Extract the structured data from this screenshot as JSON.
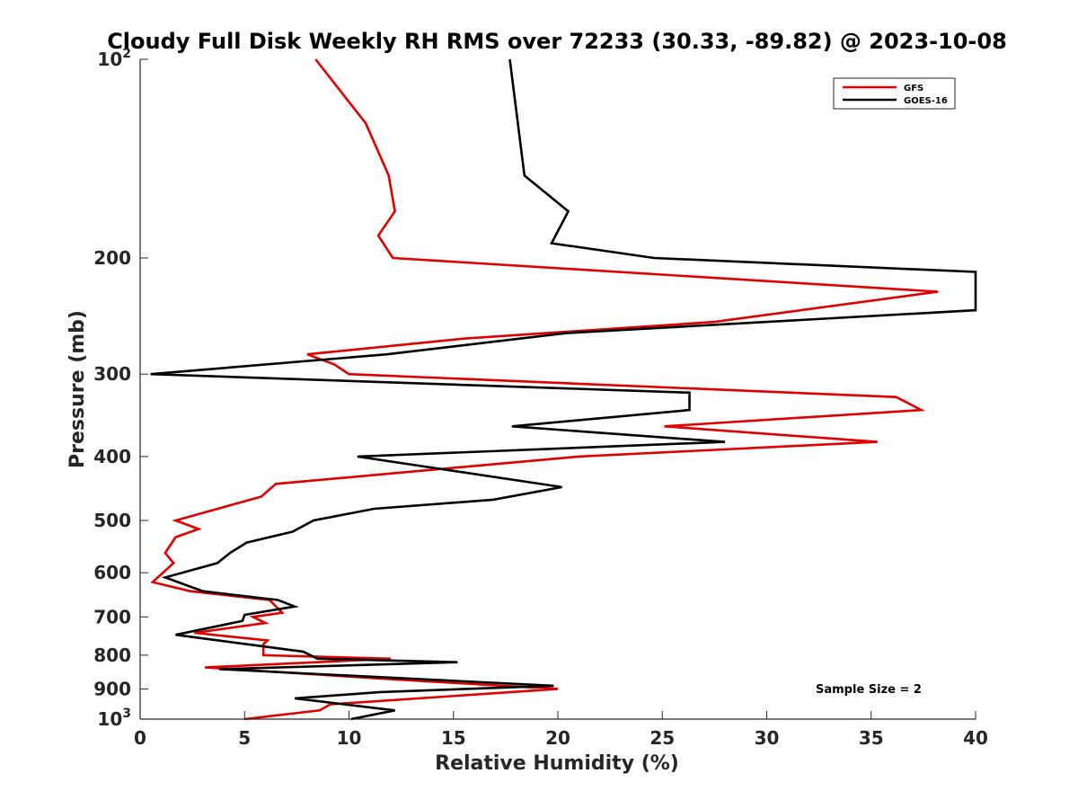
{
  "chart_data": {
    "type": "line",
    "title": "Cloudy Full Disk Weekly RH RMS over 72233 (30.33, -89.82) @ 2023-10-08",
    "xlabel": "Relative Humidity (%)",
    "ylabel": "Pressure (mb)",
    "xlim": [
      0,
      40
    ],
    "ylim": [
      1000,
      100
    ],
    "yscale": "log",
    "x_ticks": [
      "0",
      "5",
      "10",
      "15",
      "20",
      "25",
      "30",
      "35",
      "40"
    ],
    "y_ticks": [
      {
        "value": 100,
        "base": "10",
        "exp": "2"
      },
      {
        "value": 200,
        "label": "200"
      },
      {
        "value": 300,
        "label": "300"
      },
      {
        "value": 400,
        "label": "400"
      },
      {
        "value": 500,
        "label": "500"
      },
      {
        "value": 600,
        "label": "600"
      },
      {
        "value": 700,
        "label": "700"
      },
      {
        "value": 800,
        "label": "800"
      },
      {
        "value": 900,
        "label": "900"
      },
      {
        "value": 1000,
        "base": "10",
        "exp": "3"
      }
    ],
    "legend_position": "top-right",
    "annotation": "Sample Size = 2",
    "series": [
      {
        "name": "GFS",
        "color": "#e00000",
        "points": [
          [
            8.4,
            100
          ],
          [
            10.8,
            125
          ],
          [
            11.9,
            150
          ],
          [
            12.2,
            170
          ],
          [
            11.4,
            185
          ],
          [
            12.1,
            200
          ],
          [
            38.2,
            225
          ],
          [
            27.5,
            250
          ],
          [
            15.5,
            265
          ],
          [
            8.0,
            280
          ],
          [
            9.3,
            290
          ],
          [
            10.0,
            300
          ],
          [
            36.2,
            325
          ],
          [
            37.4,
            340
          ],
          [
            25.1,
            360
          ],
          [
            35.3,
            380
          ],
          [
            21.0,
            400
          ],
          [
            6.5,
            440
          ],
          [
            5.8,
            460
          ],
          [
            1.7,
            500
          ],
          [
            2.8,
            515
          ],
          [
            1.7,
            530
          ],
          [
            1.2,
            560
          ],
          [
            1.6,
            580
          ],
          [
            0.6,
            620
          ],
          [
            2.4,
            640
          ],
          [
            6.2,
            660
          ],
          [
            6.8,
            690
          ],
          [
            5.4,
            700
          ],
          [
            6.0,
            715
          ],
          [
            2.6,
            740
          ],
          [
            6.1,
            760
          ],
          [
            5.9,
            770
          ],
          [
            5.9,
            800
          ],
          [
            12.0,
            810
          ],
          [
            3.1,
            835
          ],
          [
            12.0,
            870
          ],
          [
            20.0,
            900
          ],
          [
            9.1,
            950
          ],
          [
            8.6,
            970
          ],
          [
            5.0,
            1000
          ]
        ]
      },
      {
        "name": "GOES-16",
        "color": "#000000",
        "points": [
          [
            17.7,
            100
          ],
          [
            18.4,
            150
          ],
          [
            20.5,
            170
          ],
          [
            19.7,
            190
          ],
          [
            24.6,
            200
          ],
          [
            40.0,
            210
          ],
          [
            40.0,
            240
          ],
          [
            20.4,
            260
          ],
          [
            11.8,
            280
          ],
          [
            0.5,
            300
          ],
          [
            26.3,
            320
          ],
          [
            26.3,
            340
          ],
          [
            17.8,
            360
          ],
          [
            28.0,
            380
          ],
          [
            10.4,
            400
          ],
          [
            20.2,
            445
          ],
          [
            16.9,
            465
          ],
          [
            11.2,
            480
          ],
          [
            8.3,
            500
          ],
          [
            7.3,
            520
          ],
          [
            5.1,
            540
          ],
          [
            4.3,
            560
          ],
          [
            3.7,
            580
          ],
          [
            1.2,
            610
          ],
          [
            3.0,
            640
          ],
          [
            6.6,
            660
          ],
          [
            7.4,
            675
          ],
          [
            5.0,
            695
          ],
          [
            4.9,
            710
          ],
          [
            1.7,
            745
          ],
          [
            7.8,
            790
          ],
          [
            8.5,
            810
          ],
          [
            15.2,
            820
          ],
          [
            3.8,
            840
          ],
          [
            19.8,
            890
          ],
          [
            11.5,
            910
          ],
          [
            7.4,
            930
          ],
          [
            12.2,
            970
          ],
          [
            10.1,
            1000
          ]
        ]
      }
    ]
  }
}
